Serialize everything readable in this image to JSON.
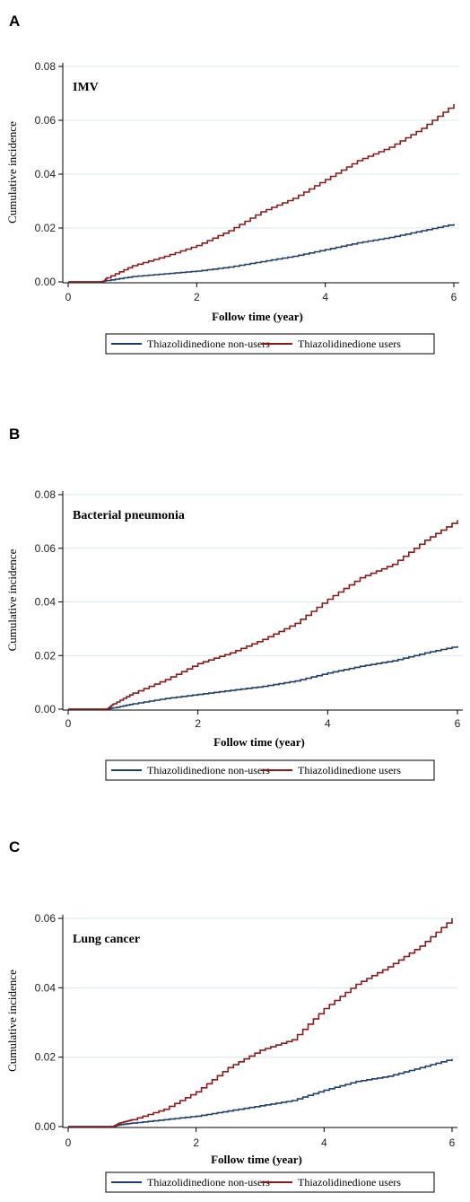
{
  "colors": {
    "non_users": "#1f3f6e",
    "users": "#8b1a1a",
    "grid": "#d7e8ec"
  },
  "panels": [
    {
      "label": "A"
    },
    {
      "label": "B"
    },
    {
      "label": "C"
    }
  ],
  "chart_data": [
    {
      "type": "line",
      "title": "IMV",
      "xlabel": "Follow time (year)",
      "ylabel": "Cumulative incidence",
      "xlim": [
        0,
        6
      ],
      "ylim": [
        0,
        0.08
      ],
      "xticks": [
        "0",
        "2",
        "4",
        "6"
      ],
      "yticks": [
        "0.00",
        "0.02",
        "0.04",
        "0.06",
        "0.08"
      ],
      "grid": true,
      "legend_position": "bottom",
      "series": [
        {
          "name": "Thiazolidinedione non-users",
          "color": "#1f3f6e",
          "x": [
            0,
            0.5,
            0.6,
            1,
            1.5,
            2,
            2.5,
            3,
            3.5,
            4,
            4.5,
            5,
            5.5,
            6
          ],
          "y": [
            0,
            0,
            0.0005,
            0.002,
            0.003,
            0.004,
            0.0055,
            0.0075,
            0.0095,
            0.012,
            0.0145,
            0.0165,
            0.019,
            0.0215
          ]
        },
        {
          "name": "Thiazolidinedione users",
          "color": "#8b1a1a",
          "x": [
            0,
            0.55,
            0.6,
            1,
            1.5,
            2,
            2.5,
            3,
            3.5,
            4,
            4.5,
            5,
            5.5,
            6
          ],
          "y": [
            0,
            0,
            0.0015,
            0.006,
            0.0095,
            0.0135,
            0.019,
            0.026,
            0.031,
            0.038,
            0.045,
            0.05,
            0.057,
            0.066
          ]
        }
      ]
    },
    {
      "type": "line",
      "title": "Bacterial pneumonia",
      "xlabel": "Follow time (year)",
      "ylabel": "Cumulative incidence",
      "xlim": [
        0,
        6
      ],
      "ylim": [
        0,
        0.08
      ],
      "xticks": [
        "0",
        "2",
        "4",
        "6"
      ],
      "yticks": [
        "0.00",
        "0.02",
        "0.04",
        "0.06",
        "0.08"
      ],
      "grid": true,
      "legend_position": "bottom",
      "series": [
        {
          "name": "Thiazolidinedione non-users",
          "color": "#1f3f6e",
          "x": [
            0,
            0.6,
            0.7,
            1,
            1.5,
            2,
            2.5,
            3,
            3.5,
            4,
            4.5,
            5,
            5.5,
            6
          ],
          "y": [
            0,
            0,
            0.0005,
            0.002,
            0.004,
            0.0055,
            0.007,
            0.0085,
            0.0105,
            0.0135,
            0.016,
            0.018,
            0.021,
            0.0235
          ]
        },
        {
          "name": "Thiazolidinedione users",
          "color": "#8b1a1a",
          "x": [
            0,
            0.6,
            0.7,
            1,
            1.5,
            2,
            2.5,
            3,
            3.5,
            4,
            4.5,
            5,
            5.5,
            6
          ],
          "y": [
            0,
            0,
            0.002,
            0.006,
            0.011,
            0.017,
            0.021,
            0.026,
            0.032,
            0.041,
            0.049,
            0.054,
            0.063,
            0.0705
          ]
        }
      ]
    },
    {
      "type": "line",
      "title": "Lung cancer",
      "xlabel": "Follow time (year)",
      "ylabel": "Cumulative incidence",
      "xlim": [
        0,
        6
      ],
      "ylim": [
        0,
        0.06
      ],
      "xticks": [
        "0",
        "2",
        "4",
        "6"
      ],
      "yticks": [
        "0.00",
        "0.02",
        "0.04",
        "0.06"
      ],
      "grid": true,
      "legend_position": "bottom",
      "series": [
        {
          "name": "Thiazolidinedione non-users",
          "color": "#1f3f6e",
          "x": [
            0,
            0.7,
            0.8,
            1,
            1.5,
            2,
            2.5,
            3,
            3.5,
            4,
            4.5,
            5,
            5.5,
            6
          ],
          "y": [
            0,
            0,
            0.0005,
            0.001,
            0.002,
            0.003,
            0.0045,
            0.006,
            0.0075,
            0.0105,
            0.013,
            0.0145,
            0.017,
            0.0195
          ]
        },
        {
          "name": "Thiazolidinedione users",
          "color": "#8b1a1a",
          "x": [
            0,
            0.7,
            0.8,
            1,
            1.5,
            2,
            2.5,
            3,
            3.5,
            4,
            4.5,
            5,
            5.5,
            6
          ],
          "y": [
            0,
            0,
            0.001,
            0.002,
            0.005,
            0.01,
            0.017,
            0.022,
            0.025,
            0.034,
            0.041,
            0.046,
            0.052,
            0.06
          ]
        }
      ]
    }
  ]
}
